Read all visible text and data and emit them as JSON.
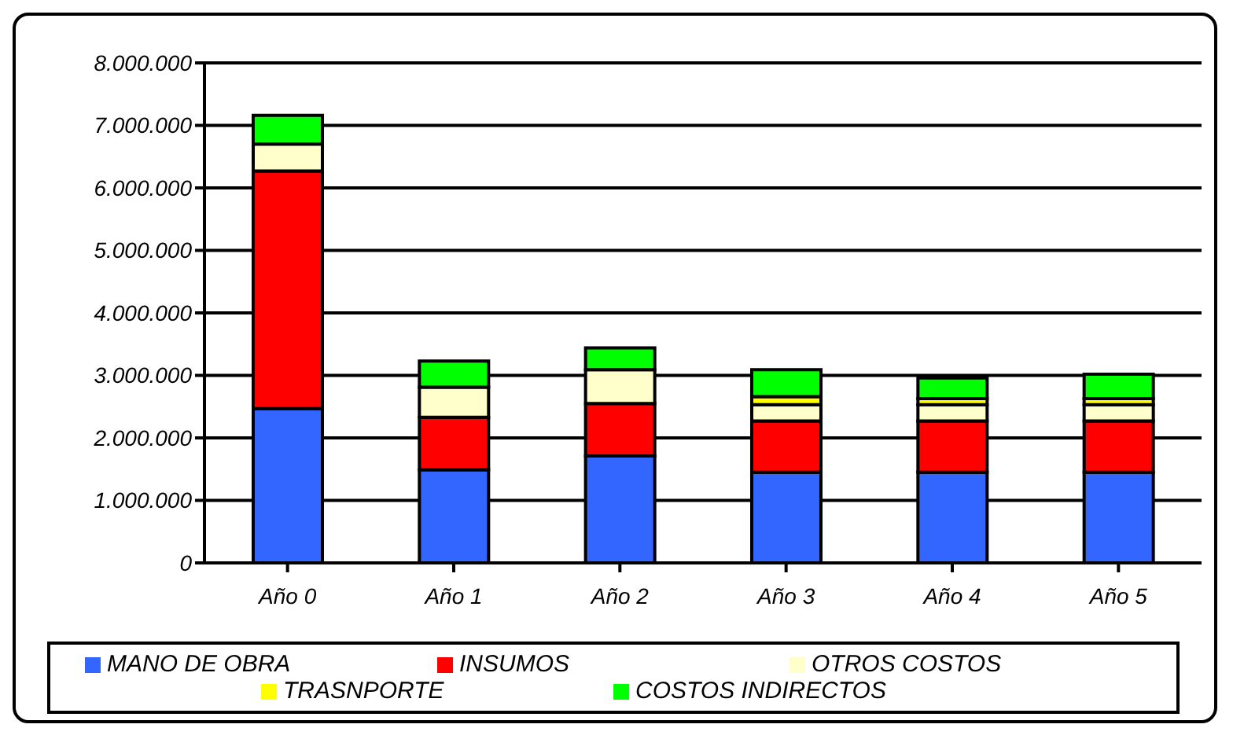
{
  "chart_data": {
    "type": "bar",
    "stacked": true,
    "categories": [
      "Año 0",
      "Año 1",
      "Año 2",
      "Año 3",
      "Año 4",
      "Año 5"
    ],
    "series": [
      {
        "name": "MANO DE OBRA",
        "color": "#3366ff",
        "values": [
          2470000,
          1490000,
          1710000,
          1450000,
          1450000,
          1450000
        ]
      },
      {
        "name": "INSUMOS",
        "color": "#ff0000",
        "values": [
          3800000,
          840000,
          840000,
          820000,
          820000,
          820000
        ]
      },
      {
        "name": "OTROS COSTOS",
        "color": "#ffffcc",
        "values": [
          430000,
          480000,
          540000,
          260000,
          260000,
          260000
        ]
      },
      {
        "name": "TRASNPORTE",
        "color": "#ffff00",
        "values": [
          null,
          null,
          null,
          130000,
          100000,
          100000
        ]
      },
      {
        "name": "COSTOS INDIRECTOS",
        "color": "#00ff00",
        "values": [
          460000,
          420000,
          350000,
          430000,
          330000,
          390000
        ]
      }
    ],
    "ylim": [
      0,
      8000000
    ],
    "yticks": [
      0,
      {
        "value": 1000000,
        "label": "1.000.000"
      },
      {
        "value": 2000000,
        "label": "2.000.000"
      },
      {
        "value": 3000000,
        "label": "3.000.000"
      },
      {
        "value": 4000000,
        "label": "4.000.000"
      },
      {
        "value": 5000000,
        "label": "5.000.000"
      },
      {
        "value": 6000000,
        "label": "6.000.000"
      },
      {
        "value": 7000000,
        "label": "7.000.000"
      },
      {
        "value": 8000000,
        "label": "8.000.000"
      }
    ],
    "grid": "y",
    "legend": "bottom"
  }
}
